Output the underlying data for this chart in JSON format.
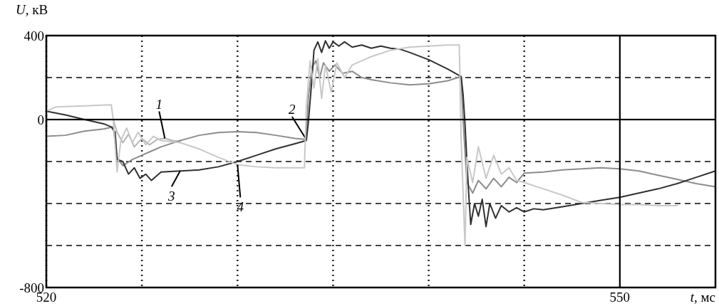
{
  "chart_data": {
    "type": "line",
    "xlabel": "t, мс",
    "ylabel": "U, кВ",
    "xlim": [
      520,
      555
    ],
    "ylim": [
      -800,
      400
    ],
    "xticks": [
      520,
      {
        "value": 525,
        "label": null
      },
      {
        "value": 530,
        "label": null
      },
      {
        "value": 535,
        "label": null
      },
      {
        "value": 540,
        "label": null
      },
      {
        "value": 545,
        "label": null
      },
      550
    ],
    "yticks": [
      400,
      {
        "value": 200,
        "label": null
      },
      0,
      {
        "value": -200,
        "label": null
      },
      {
        "value": -400,
        "label": null
      },
      {
        "value": -600,
        "label": null
      },
      -800
    ],
    "grid": true,
    "line_style": "solid",
    "ref_lines": [
      {
        "axis": "y",
        "value": 0,
        "color": "#000000",
        "line_style": "solid"
      },
      {
        "axis": "x",
        "value": 550,
        "color": "#000000",
        "line_style": "solid"
      }
    ],
    "series": [
      {
        "name": "1",
        "color": "#b4b4b4",
        "x": [
          523.5,
          523.7,
          524,
          524.3,
          524.6,
          525,
          525.4,
          525.8,
          526.2,
          526.6,
          527
        ],
        "values": [
          0,
          -60,
          -110,
          -70,
          -130,
          -90,
          -120,
          -95,
          -90,
          -100,
          -105
        ]
      },
      {
        "name": "2",
        "color": "#8c8c8c",
        "x": [
          520,
          521,
          522,
          523,
          523.5,
          523.7,
          524,
          524.5,
          525,
          525.5,
          526,
          527,
          528,
          529,
          530,
          531,
          532,
          533,
          533.6,
          533.7,
          533.9,
          534.1,
          534.3,
          534.5,
          534.8,
          535.1,
          535.5,
          536,
          536.5,
          537,
          538,
          539,
          540,
          541,
          541.7,
          541.8,
          542,
          542.3,
          542.6,
          543,
          543.4,
          543.8,
          544.2,
          544.6,
          545,
          546,
          547,
          548,
          549,
          550,
          551,
          552,
          553,
          554,
          555
        ],
        "values": [
          -80,
          -75,
          -55,
          -45,
          -35,
          -180,
          -220,
          -190,
          -170,
          -150,
          -130,
          -100,
          -75,
          -62,
          -58,
          -62,
          -75,
          -90,
          -95,
          100,
          250,
          280,
          200,
          270,
          230,
          260,
          220,
          230,
          200,
          190,
          175,
          165,
          170,
          185,
          205,
          0,
          -300,
          -350,
          -290,
          -330,
          -280,
          -320,
          -275,
          -300,
          -255,
          -250,
          -240,
          -235,
          -230,
          -235,
          -245,
          -265,
          -285,
          -305,
          -320
        ]
      },
      {
        "name": "3",
        "color": "#303030",
        "x": [
          520,
          521,
          522,
          523,
          523.4,
          523.6,
          523.7,
          524,
          524.3,
          524.6,
          524.9,
          525.2,
          525.5,
          526,
          527,
          528,
          529,
          530,
          531,
          532,
          533,
          533.6,
          533.7,
          533.9,
          534,
          534.2,
          534.4,
          534.6,
          534.8,
          535,
          535.3,
          535.6,
          536,
          536.5,
          537,
          537.5,
          538,
          538.5,
          539,
          540,
          541,
          541.7,
          541.8,
          541.9,
          542,
          542.1,
          542.2,
          542.4,
          542.6,
          542.8,
          543,
          543.2,
          543.5,
          543.8,
          544.2,
          544.6,
          545,
          545.5,
          546,
          547,
          548,
          549,
          550,
          551,
          552,
          553,
          554,
          555
        ],
        "values": [
          40,
          22,
          0,
          -20,
          -35,
          -60,
          -190,
          -200,
          -260,
          -230,
          -280,
          -260,
          -290,
          -250,
          -245,
          -240,
          -225,
          -200,
          -170,
          -140,
          -115,
          -100,
          -20,
          200,
          330,
          370,
          320,
          375,
          340,
          370,
          350,
          370,
          345,
          355,
          340,
          350,
          340,
          335,
          320,
          285,
          240,
          205,
          120,
          -20,
          -200,
          -360,
          -500,
          -400,
          -460,
          -380,
          -510,
          -400,
          -470,
          -410,
          -440,
          -420,
          -440,
          -425,
          -430,
          -415,
          -400,
          -385,
          -370,
          -350,
          -330,
          -305,
          -275,
          -245
        ]
      },
      {
        "name": "4",
        "color": "#c8c8c8",
        "x": [
          520,
          520.5,
          522,
          523.4,
          523.5,
          523.7,
          523.9,
          524.2,
          524.5,
          524.8,
          525.2,
          525.6,
          526,
          527,
          528,
          529,
          530,
          531,
          532,
          533.5,
          533.6,
          533.8,
          534,
          534.2,
          534.4,
          534.6,
          534.9,
          535.2,
          535.6,
          536,
          536.5,
          537,
          538,
          539,
          540,
          541,
          541.6,
          541.7,
          541.9,
          542,
          542.3,
          542.6,
          543,
          543.4,
          543.8,
          544.2,
          544.6,
          545,
          546,
          547,
          548,
          549,
          550,
          551,
          552,
          553
        ],
        "values": [
          40,
          60,
          65,
          70,
          0,
          -250,
          -100,
          -40,
          -110,
          -60,
          -120,
          -80,
          -100,
          -110,
          -140,
          -180,
          -215,
          -225,
          -230,
          -230,
          60,
          280,
          150,
          290,
          100,
          260,
          130,
          270,
          200,
          260,
          280,
          300,
          330,
          345,
          350,
          355,
          355,
          -100,
          -600,
          -180,
          -300,
          -130,
          -280,
          -170,
          -260,
          -230,
          -290,
          -300,
          -330,
          -360,
          -395,
          -400,
          -405,
          -405,
          -410,
          -410
        ]
      }
    ]
  }
}
